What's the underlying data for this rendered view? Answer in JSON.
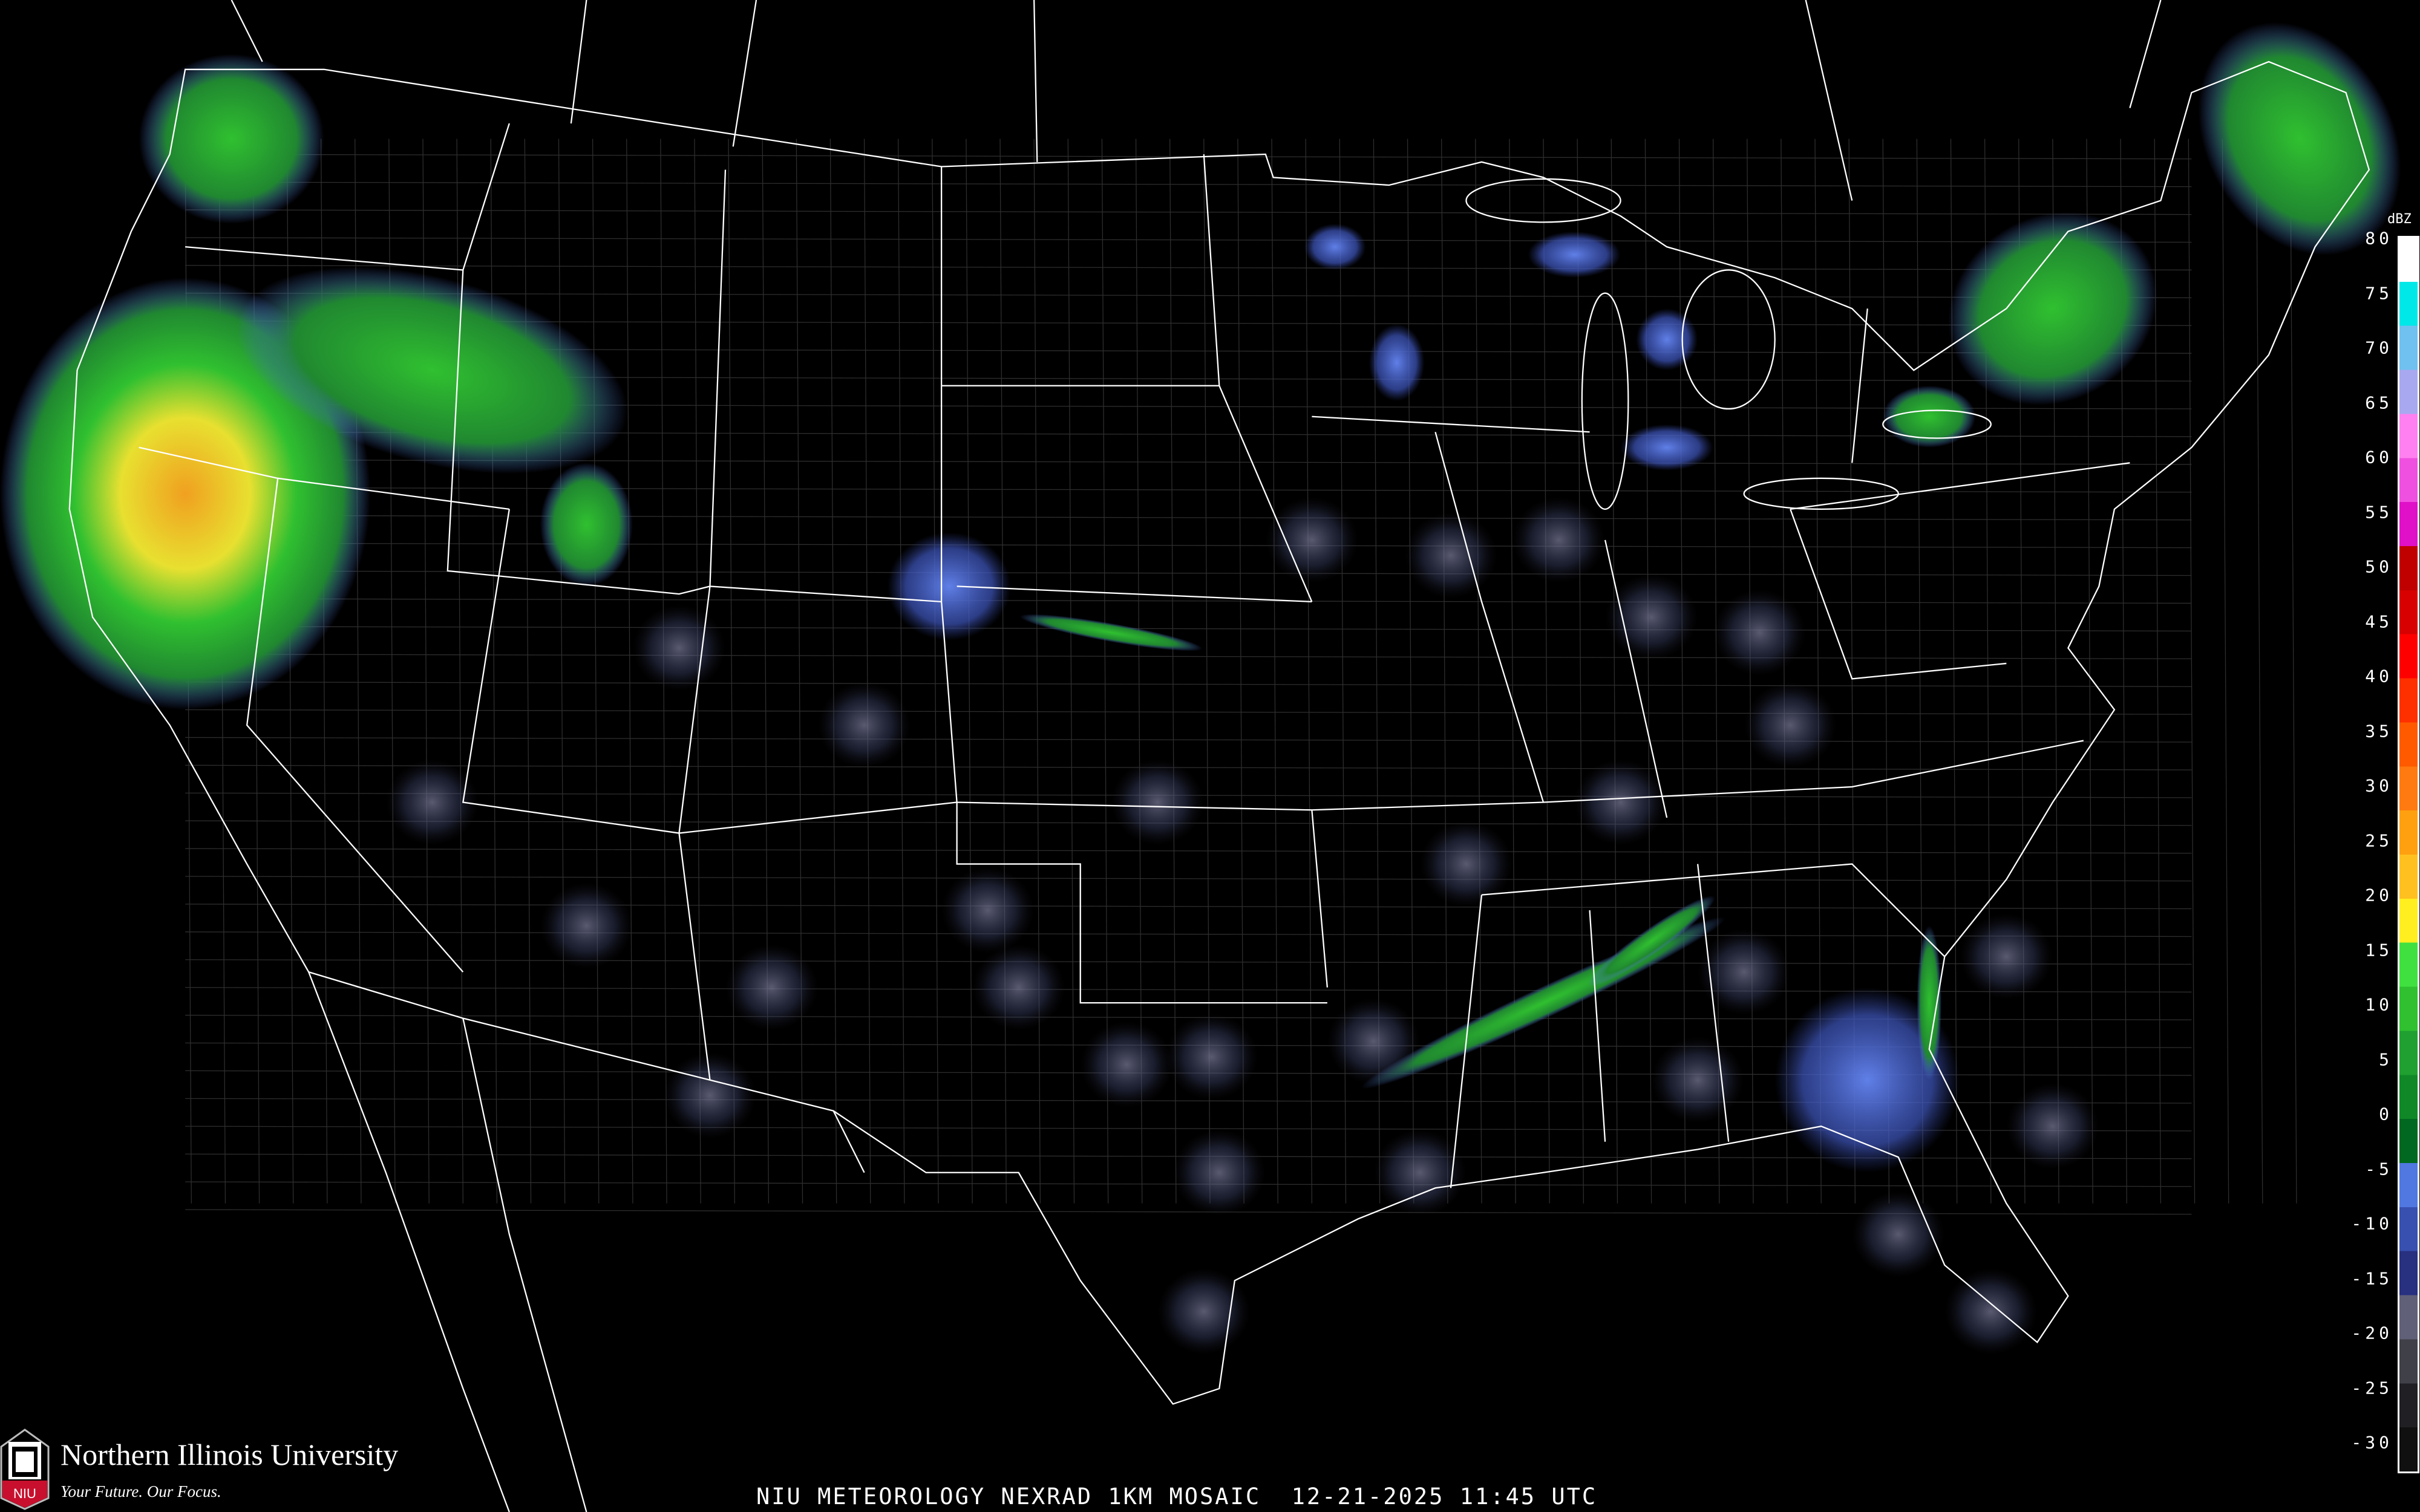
{
  "caption": "NIU METEOROLOGY NEXRAD 1KM MOSAIC  12-21-2025 11:45 UTC",
  "logo": {
    "name": "Northern Illinois University",
    "tagline": "Your Future. Our Focus.",
    "badge": "NIU"
  },
  "legend": {
    "unit": "dBZ",
    "ticks": [
      "80",
      "75",
      "70",
      "65",
      "60",
      "55",
      "50",
      "45",
      "40",
      "35",
      "30",
      "25",
      "20",
      "15",
      "10",
      "5",
      "0",
      "-5",
      "-10",
      "-15",
      "-20",
      "-25",
      "-30"
    ],
    "colors": [
      "#ffffff",
      "#00e8e8",
      "#70c0f0",
      "#a8a8f0",
      "#ff80f0",
      "#f050e0",
      "#e010c8",
      "#c00000",
      "#d80000",
      "#ff0000",
      "#ff3000",
      "#ff5a00",
      "#ff7a10",
      "#ffa010",
      "#ffc020",
      "#ffee20",
      "#40e040",
      "#30c030",
      "#20a030",
      "#108828",
      "#006820",
      "#5078e0",
      "#3850b0",
      "#283080",
      "#606078",
      "#404048",
      "#202024",
      "#101010"
    ]
  },
  "colors": {
    "background": "#000000",
    "outline": "#ffffff",
    "counties": "#3a3a3a",
    "roads": "#8a4a20"
  }
}
